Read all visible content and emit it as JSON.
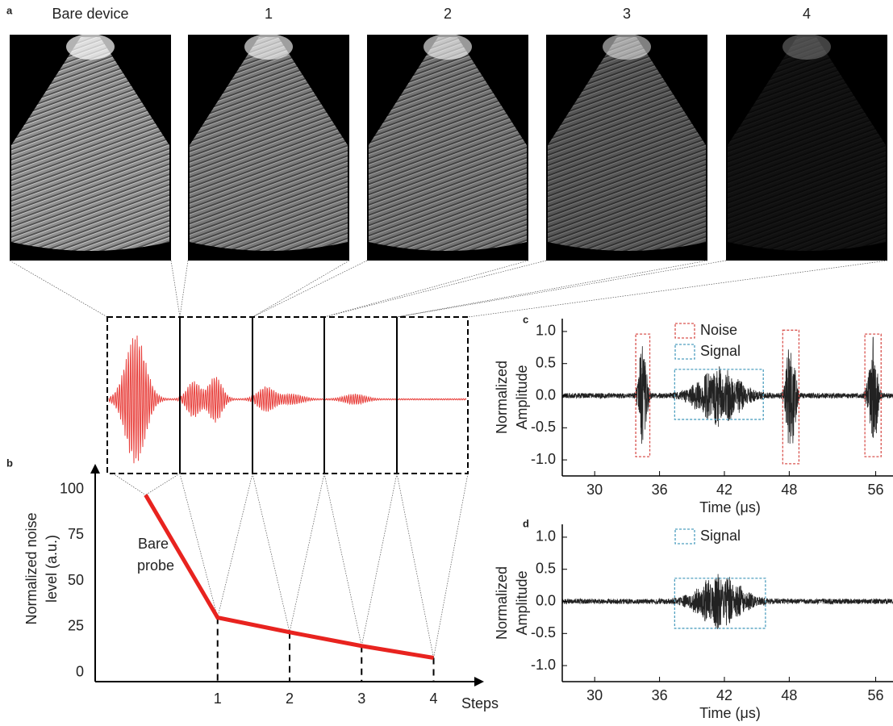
{
  "panel_a": {
    "label": "a",
    "titles": [
      "Bare device",
      "1",
      "2",
      "3",
      "4"
    ]
  },
  "chart_data": [
    {
      "type": "line",
      "panel": "b",
      "y_label_lines": [
        "Normalized noise",
        "level (a.u.)"
      ],
      "x_label": "Steps",
      "annotation_lines": [
        "Bare",
        "probe"
      ],
      "x": [
        0,
        1,
        2,
        3,
        4
      ],
      "values": [
        97,
        30,
        22,
        14.5,
        8
      ],
      "color": "#e8231f",
      "xlim": [
        -0.7,
        4.7
      ],
      "ylim": [
        -5,
        114
      ],
      "xticks": [
        1,
        2,
        3,
        4
      ],
      "yticks": [
        0,
        25,
        50,
        75,
        100
      ]
    },
    {
      "type": "signal",
      "panel": "c",
      "y_label_lines": [
        "Normalized",
        "Amplitude"
      ],
      "x_label": "Time (μs)",
      "legend": [
        {
          "label": "Noise",
          "color": "#d9534f"
        },
        {
          "label": "Signal",
          "color": "#4f9fbf"
        }
      ],
      "boxes": [
        {
          "legend": 0,
          "xlim": [
            33.8,
            35.1
          ],
          "ylim": [
            -0.95,
            0.96
          ]
        },
        {
          "legend": 0,
          "xlim": [
            47.4,
            48.9
          ],
          "ylim": [
            -1.06,
            1.02
          ]
        },
        {
          "legend": 0,
          "xlim": [
            55.0,
            56.5
          ],
          "ylim": [
            -0.95,
            0.96
          ]
        },
        {
          "legend": 1,
          "xlim": [
            37.4,
            45.6
          ],
          "ylim": [
            -0.37,
            0.41
          ]
        }
      ],
      "xlim": [
        27,
        57.6
      ],
      "ylim": [
        -1.25,
        1.2
      ],
      "xticks": [
        30,
        36,
        42,
        48,
        56
      ],
      "yticks": [
        {
          "value": -1,
          "label": "-1.0"
        },
        -0.5,
        {
          "value": 0,
          "label": "0.0"
        },
        0.5,
        {
          "value": 1,
          "label": "1.0"
        }
      ]
    },
    {
      "type": "signal",
      "panel": "d",
      "y_label_lines": [
        "Normalized",
        "Amplitude"
      ],
      "x_label": "Time (μs)",
      "legend": [
        {
          "label": "Signal",
          "color": "#4f9fbf"
        }
      ],
      "boxes": [
        {
          "legend": 0,
          "xlim": [
            37.4,
            45.8
          ],
          "ylim": [
            -0.42,
            0.36
          ]
        }
      ],
      "xlim": [
        27,
        57.6
      ],
      "ylim": [
        -1.25,
        1.2
      ],
      "xticks": [
        30,
        36,
        42,
        48,
        56
      ],
      "yticks": [
        {
          "value": -1,
          "label": "-1.0"
        },
        -0.5,
        {
          "value": 0,
          "label": "0.0"
        },
        0.5,
        {
          "value": 1,
          "label": "1.0"
        }
      ]
    }
  ]
}
